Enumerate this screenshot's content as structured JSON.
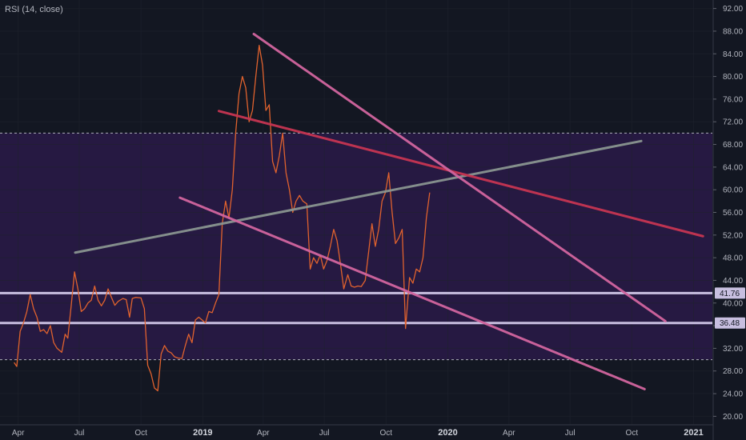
{
  "indicator": {
    "title": "RSI (14, close)"
  },
  "colors": {
    "background": "#131722",
    "band_fill": "#2a1a48",
    "band_line": "#d1d4dc",
    "grid": "#1e222d",
    "rsi_line": "#e0622e",
    "pink_channel": "#d2659f",
    "red_trend": "#c73552",
    "gray_trend": "#8a9591",
    "level_line": "#c8bfe0",
    "axis_text": "#b2b5be"
  },
  "chart_data": {
    "type": "line",
    "title": "RSI (14, close)",
    "xlabel": "",
    "ylabel": "",
    "ylim": [
      18.5,
      93.5
    ],
    "xlim": [
      "2018-03-05",
      "2021-01-29"
    ],
    "grid": true,
    "y_ticks": [
      "20.00",
      "24.00",
      "28.00",
      "32.00",
      "36.00",
      "40.00",
      "44.00",
      "48.00",
      "52.00",
      "56.00",
      "60.00",
      "64.00",
      "68.00",
      "72.00",
      "76.00",
      "80.00",
      "84.00",
      "88.00",
      "92.00"
    ],
    "x_ticks": [
      {
        "label": "Apr",
        "date": "2018-04-01",
        "bold": false
      },
      {
        "label": "Jul",
        "date": "2018-07-01",
        "bold": false
      },
      {
        "label": "Oct",
        "date": "2018-10-01",
        "bold": false
      },
      {
        "label": "2019",
        "date": "2019-01-01",
        "bold": true
      },
      {
        "label": "Apr",
        "date": "2019-04-01",
        "bold": false
      },
      {
        "label": "Jul",
        "date": "2019-07-01",
        "bold": false
      },
      {
        "label": "Oct",
        "date": "2019-10-01",
        "bold": false
      },
      {
        "label": "2020",
        "date": "2020-01-01",
        "bold": true
      },
      {
        "label": "Apr",
        "date": "2020-04-01",
        "bold": false
      },
      {
        "label": "Jul",
        "date": "2020-07-01",
        "bold": false
      },
      {
        "label": "Oct",
        "date": "2020-10-01",
        "bold": false
      },
      {
        "label": "2021",
        "date": "2021-01-01",
        "bold": true
      }
    ],
    "bands": {
      "upper": 70,
      "lower": 30
    },
    "horizontal_levels": [
      {
        "value": 41.76,
        "label": "41.76"
      },
      {
        "value": 36.48,
        "label": "36.48"
      }
    ],
    "series": [
      {
        "points": [
          [
            "2018-03-26",
            29.5
          ],
          [
            "2018-03-30",
            28.8
          ],
          [
            "2018-04-04",
            35
          ],
          [
            "2018-04-09",
            36.5
          ],
          [
            "2018-04-14",
            38.5
          ],
          [
            "2018-04-19",
            41.5
          ],
          [
            "2018-04-24",
            39
          ],
          [
            "2018-04-29",
            37.5
          ],
          [
            "2018-05-04",
            35
          ],
          [
            "2018-05-09",
            35.3
          ],
          [
            "2018-05-14",
            34.6
          ],
          [
            "2018-05-19",
            36
          ],
          [
            "2018-05-24",
            33
          ],
          [
            "2018-05-29",
            32
          ],
          [
            "2018-06-05",
            31.3
          ],
          [
            "2018-06-10",
            34.5
          ],
          [
            "2018-06-14",
            33.8
          ],
          [
            "2018-06-19",
            39.5
          ],
          [
            "2018-06-24",
            45.5
          ],
          [
            "2018-06-29",
            42.5
          ],
          [
            "2018-07-04",
            38.5
          ],
          [
            "2018-07-09",
            39
          ],
          [
            "2018-07-14",
            40
          ],
          [
            "2018-07-19",
            40.5
          ],
          [
            "2018-07-24",
            43
          ],
          [
            "2018-07-29",
            40.5
          ],
          [
            "2018-08-03",
            39.5
          ],
          [
            "2018-08-08",
            40.5
          ],
          [
            "2018-08-13",
            42.5
          ],
          [
            "2018-08-18",
            41
          ],
          [
            "2018-08-23",
            39.6
          ],
          [
            "2018-08-28",
            40.3
          ],
          [
            "2018-09-04",
            40.8
          ],
          [
            "2018-09-09",
            40.6
          ],
          [
            "2018-09-14",
            37.5
          ],
          [
            "2018-09-18",
            40.8
          ],
          [
            "2018-09-23",
            41
          ],
          [
            "2018-10-01",
            40.9
          ],
          [
            "2018-10-06",
            39
          ],
          [
            "2018-10-11",
            29
          ],
          [
            "2018-10-16",
            27.5
          ],
          [
            "2018-10-21",
            25
          ],
          [
            "2018-10-26",
            24.5
          ],
          [
            "2018-10-31",
            31
          ],
          [
            "2018-11-05",
            32.5
          ],
          [
            "2018-11-10",
            31.5
          ],
          [
            "2018-11-15",
            31.2
          ],
          [
            "2018-11-20",
            30.5
          ],
          [
            "2018-11-25",
            30.3
          ],
          [
            "2018-12-01",
            30.2
          ],
          [
            "2018-12-06",
            32.5
          ],
          [
            "2018-12-11",
            34.5
          ],
          [
            "2018-12-16",
            33
          ],
          [
            "2018-12-21",
            37
          ],
          [
            "2018-12-26",
            37.5
          ],
          [
            "2019-01-05",
            36.5
          ],
          [
            "2019-01-10",
            38.5
          ],
          [
            "2019-01-15",
            38.3
          ],
          [
            "2019-01-20",
            40
          ],
          [
            "2019-01-25",
            41.5
          ],
          [
            "2019-01-30",
            54
          ],
          [
            "2019-02-04",
            58
          ],
          [
            "2019-02-09",
            55
          ],
          [
            "2019-02-14",
            60
          ],
          [
            "2019-02-19",
            70
          ],
          [
            "2019-02-24",
            77
          ],
          [
            "2019-03-01",
            80
          ],
          [
            "2019-03-06",
            78
          ],
          [
            "2019-03-11",
            72
          ],
          [
            "2019-03-16",
            74
          ],
          [
            "2019-03-21",
            80
          ],
          [
            "2019-03-26",
            85.5
          ],
          [
            "2019-03-31",
            82
          ],
          [
            "2019-04-05",
            74
          ],
          [
            "2019-04-10",
            75
          ],
          [
            "2019-04-15",
            65
          ],
          [
            "2019-04-20",
            63
          ],
          [
            "2019-04-25",
            66
          ],
          [
            "2019-04-30",
            70
          ],
          [
            "2019-05-05",
            63
          ],
          [
            "2019-05-10",
            60
          ],
          [
            "2019-05-15",
            56
          ],
          [
            "2019-05-20",
            58
          ],
          [
            "2019-05-25",
            59
          ],
          [
            "2019-05-30",
            58
          ],
          [
            "2019-06-05",
            57.5
          ],
          [
            "2019-06-10",
            46
          ],
          [
            "2019-06-15",
            48
          ],
          [
            "2019-06-20",
            47
          ],
          [
            "2019-06-25",
            48.5
          ],
          [
            "2019-06-30",
            46
          ],
          [
            "2019-07-05",
            47.5
          ],
          [
            "2019-07-10",
            50
          ],
          [
            "2019-07-15",
            53
          ],
          [
            "2019-07-20",
            51
          ],
          [
            "2019-07-25",
            47
          ],
          [
            "2019-07-30",
            42.5
          ],
          [
            "2019-08-05",
            45
          ],
          [
            "2019-08-10",
            43
          ],
          [
            "2019-08-15",
            42.8
          ],
          [
            "2019-08-20",
            43
          ],
          [
            "2019-08-25",
            42.9
          ],
          [
            "2019-08-31",
            44
          ],
          [
            "2019-09-05",
            49
          ],
          [
            "2019-09-10",
            54
          ],
          [
            "2019-09-15",
            50
          ],
          [
            "2019-09-20",
            53
          ],
          [
            "2019-09-25",
            58
          ],
          [
            "2019-09-30",
            59.5
          ],
          [
            "2019-10-05",
            63
          ],
          [
            "2019-10-10",
            56
          ],
          [
            "2019-10-15",
            50.5
          ],
          [
            "2019-10-20",
            51.5
          ],
          [
            "2019-10-25",
            53
          ],
          [
            "2019-10-30",
            35.5
          ],
          [
            "2019-11-05",
            44.5
          ],
          [
            "2019-11-10",
            43.5
          ],
          [
            "2019-11-15",
            46
          ],
          [
            "2019-11-20",
            45.5
          ],
          [
            "2019-11-25",
            48
          ],
          [
            "2019-11-30",
            55
          ],
          [
            "2019-12-05",
            59.5
          ]
        ]
      }
    ],
    "trendlines": [
      {
        "from": [
          "2018-06-25",
          48.9
        ],
        "to": [
          "2020-10-15",
          68.6
        ]
      },
      {
        "from": [
          "2019-01-25",
          73.9
        ],
        "to": [
          "2021-01-15",
          51.8
        ]
      },
      {
        "from": [
          "2019-03-18",
          87.5
        ],
        "to": [
          "2020-11-20",
          36.8
        ]
      },
      {
        "from": [
          "2018-11-28",
          58.6
        ],
        "to": [
          "2020-10-20",
          24.8
        ]
      }
    ]
  }
}
